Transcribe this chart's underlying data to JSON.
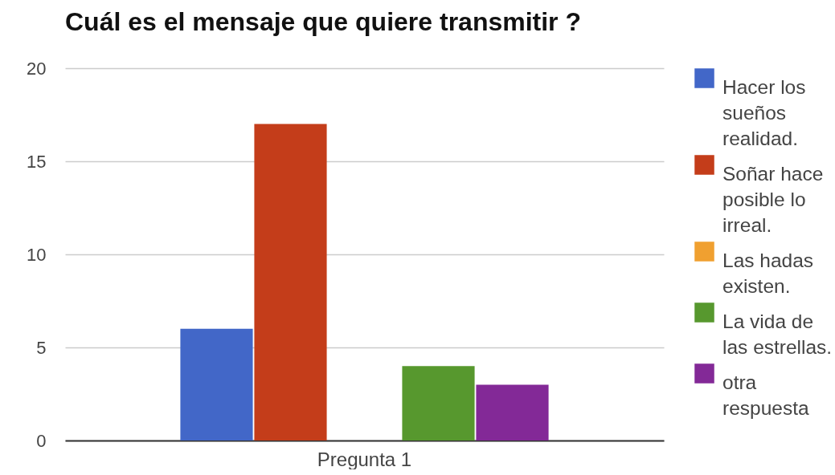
{
  "chart_data": {
    "type": "bar",
    "title": "Cuál es el mensaje que quiere transmitir ?",
    "categories": [
      "Pregunta 1"
    ],
    "series": [
      {
        "name": "Hacer los sueños realidad.",
        "color": "#4267c8",
        "values": [
          6
        ]
      },
      {
        "name": "Soñar hace posible lo irreal.",
        "color": "#c43d1a",
        "values": [
          17
        ]
      },
      {
        "name": "Las hadas existen.",
        "color": "#f0a030",
        "values": [
          0
        ]
      },
      {
        "name": "La vida de las estrellas.",
        "color": "#57982e",
        "values": [
          4
        ]
      },
      {
        "name": "otra respuesta",
        "color": "#832997",
        "values": [
          3
        ]
      }
    ],
    "ylim": [
      0,
      20
    ],
    "yticks": [
      0,
      5,
      10,
      15,
      20
    ],
    "grid": "y",
    "legend": "right"
  }
}
